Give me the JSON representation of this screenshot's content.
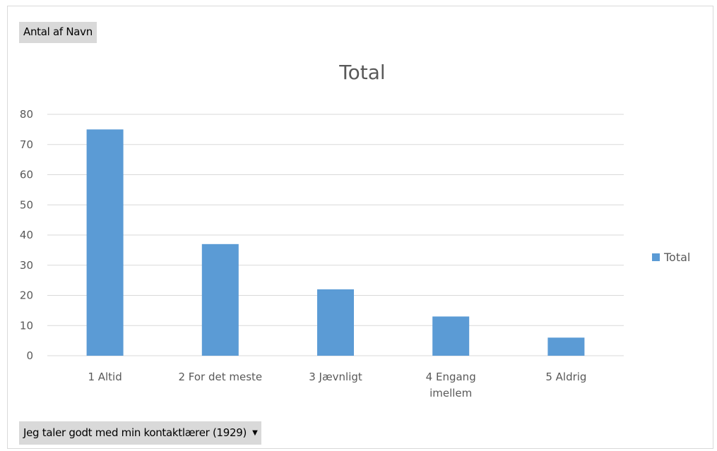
{
  "pivot": {
    "values_label": "Antal af Navn",
    "filter_label": "Jeg taler godt med min kontaktlærer (1929)",
    "filter_icon": "dropdown-arrow-icon"
  },
  "chart_data": {
    "type": "bar",
    "title": "Total",
    "categories": [
      "1 Altid",
      "2 For det meste",
      "3 Jævnligt",
      "4 Engang imellem",
      "5 Aldrig"
    ],
    "category_lines": [
      [
        "1 Altid"
      ],
      [
        "2 For det meste"
      ],
      [
        "3 Jævnligt"
      ],
      [
        "4 Engang",
        "imellem"
      ],
      [
        "5 Aldrig"
      ]
    ],
    "series": [
      {
        "name": "Total",
        "values": [
          75,
          37,
          22,
          13,
          6
        ],
        "color": "#5b9bd5"
      }
    ],
    "xlabel": "",
    "ylabel": "",
    "ylim": [
      0,
      80
    ],
    "yticks": [
      0,
      10,
      20,
      30,
      40,
      50,
      60,
      70,
      80
    ],
    "grid": true,
    "legend": "right",
    "colors": {
      "bar": "#5b9bd5",
      "grid": "#d9d9d9",
      "text": "#595959"
    }
  }
}
